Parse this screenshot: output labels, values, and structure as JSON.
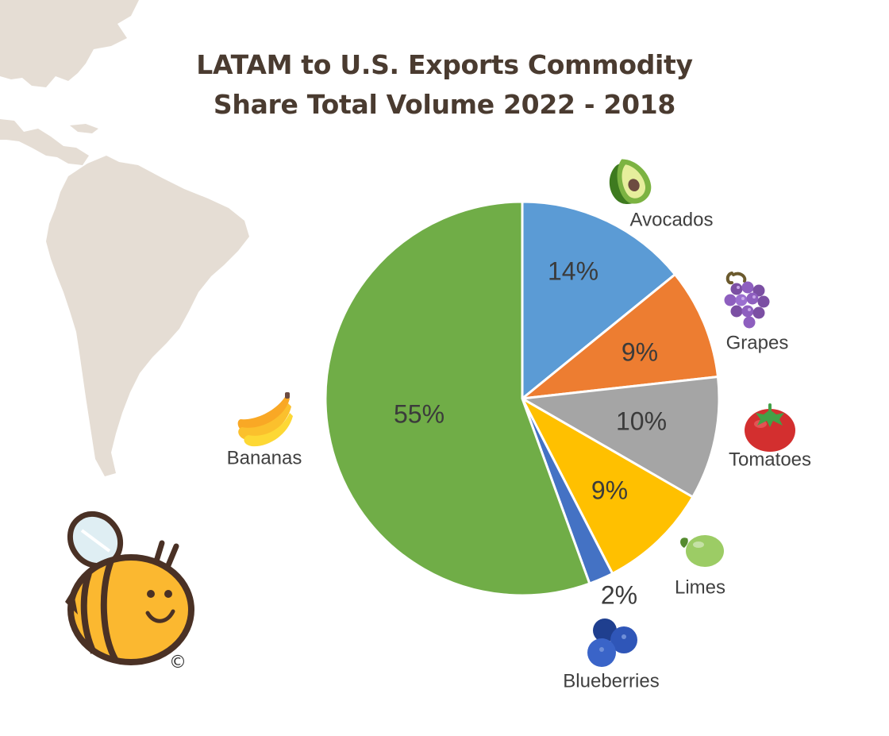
{
  "chart_data": {
    "type": "pie",
    "title": "LATAM to U.S. Exports Commodity Share Total Volume 2022 - 2018",
    "title_lines": [
      "LATAM to U.S. Exports Commodity",
      "Share Total Volume 2022 - 2018"
    ],
    "start": "12 o'clock",
    "direction": "clockwise",
    "slices": [
      {
        "label": "Avocados",
        "value": 14,
        "value_label": "14%",
        "color": "#5b9bd5",
        "icon": "avocado-icon"
      },
      {
        "label": "Grapes",
        "value": 9,
        "value_label": "9%",
        "color": "#ed7d31",
        "icon": "grapes-icon"
      },
      {
        "label": "Tomatoes",
        "value": 10,
        "value_label": "10%",
        "color": "#a5a5a5",
        "icon": "tomato-icon"
      },
      {
        "label": "Limes",
        "value": 9,
        "value_label": "9%",
        "color": "#ffc000",
        "icon": "lime-icon"
      },
      {
        "label": "Blueberries",
        "value": 2,
        "value_label": "2%",
        "color": "#4472c4",
        "icon": "blueberries-icon"
      },
      {
        "label": "Bananas",
        "value": 55,
        "value_label": "55%",
        "color": "#70ad47",
        "icon": "banana-icon"
      }
    ]
  },
  "decorations": {
    "copyright_symbol": "©",
    "map_color": "#e5ddd4",
    "mascot": "bee-icon"
  }
}
